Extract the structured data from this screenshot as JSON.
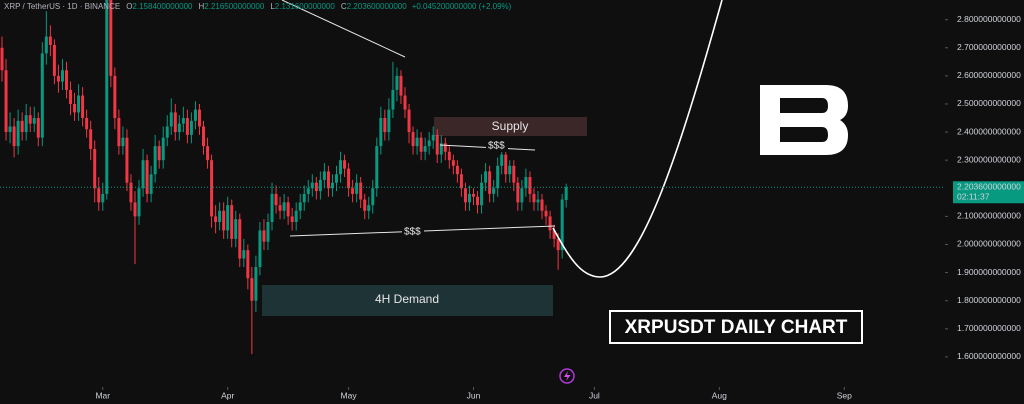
{
  "header": {
    "symbol": "XRP / TetherUS · 1D · BINANCE",
    "fields": [
      {
        "key": "O",
        "value": "2.158400000000"
      },
      {
        "key": "H",
        "value": "2.216500000000"
      },
      {
        "key": "L",
        "value": "2.131600000000"
      },
      {
        "key": "C",
        "value": "2.203600000000"
      }
    ],
    "change": "+0.045200000000 (+2.09%)"
  },
  "chart_data": {
    "type": "candlestick",
    "open": [
      2.7,
      2.62,
      2.4,
      2.42,
      2.35,
      2.44,
      2.4,
      2.46,
      2.43,
      2.45,
      2.38,
      2.68,
      2.74,
      2.71,
      2.6,
      2.58,
      2.62,
      2.55,
      2.5,
      2.47,
      2.53,
      2.45,
      2.41,
      2.34,
      2.2,
      2.15,
      2.18,
      2.88,
      2.6,
      2.45,
      2.35,
      2.38,
      2.22,
      2.15,
      2.1,
      2.2,
      2.3,
      2.18,
      2.25,
      2.35,
      2.3,
      2.38,
      2.42,
      2.47,
      2.4,
      2.43,
      2.45,
      2.39,
      2.44,
      2.48,
      2.42,
      2.35,
      2.3,
      2.1,
      2.08,
      2.12,
      2.05,
      2.14,
      2.02,
      2.09,
      1.95,
      1.98,
      1.88,
      1.8,
      1.92,
      2.05,
      2.01,
      2.08,
      2.18,
      2.14,
      2.12,
      2.15,
      2.1,
      2.08,
      2.12,
      2.15,
      2.18,
      2.2,
      2.22,
      2.19,
      2.23,
      2.26,
      2.2,
      2.22,
      2.25,
      2.3,
      2.27,
      2.2,
      2.18,
      2.22,
      2.16,
      2.12,
      2.14,
      2.2,
      2.35,
      2.45,
      2.4,
      2.48,
      2.55,
      2.6,
      2.53,
      2.48,
      2.4,
      2.35,
      2.38,
      2.33,
      2.35,
      2.37,
      2.39,
      2.32,
      2.36,
      2.33,
      2.3,
      2.28,
      2.25,
      2.2,
      2.15,
      2.18,
      2.17,
      2.14,
      2.22,
      2.26,
      2.18,
      2.2,
      2.28,
      2.32,
      2.25,
      2.28,
      2.22,
      2.15,
      2.2,
      2.24,
      2.18,
      2.15,
      2.16,
      2.12,
      2.1,
      2.05,
      2.02,
      1.98,
      2.1584
    ],
    "high": [
      2.74,
      2.66,
      2.47,
      2.45,
      2.48,
      2.47,
      2.5,
      2.49,
      2.49,
      2.47,
      2.72,
      2.83,
      2.78,
      2.73,
      2.64,
      2.66,
      2.65,
      2.58,
      2.54,
      2.57,
      2.56,
      2.48,
      2.44,
      2.37,
      2.24,
      2.22,
      2.99,
      2.92,
      2.63,
      2.48,
      2.42,
      2.41,
      2.25,
      2.19,
      2.23,
      2.34,
      2.32,
      2.28,
      2.39,
      2.37,
      2.42,
      2.46,
      2.52,
      2.5,
      2.46,
      2.49,
      2.48,
      2.47,
      2.51,
      2.5,
      2.44,
      2.38,
      2.32,
      2.14,
      2.15,
      2.15,
      2.17,
      2.16,
      2.12,
      2.11,
      2.02,
      2.0,
      1.92,
      1.96,
      2.08,
      2.09,
      2.11,
      2.22,
      2.21,
      2.17,
      2.18,
      2.17,
      2.13,
      2.15,
      2.18,
      2.21,
      2.23,
      2.25,
      2.24,
      2.26,
      2.29,
      2.28,
      2.25,
      2.28,
      2.33,
      2.32,
      2.29,
      2.23,
      2.25,
      2.24,
      2.18,
      2.17,
      2.23,
      2.38,
      2.49,
      2.48,
      2.52,
      2.65,
      2.63,
      2.62,
      2.56,
      2.5,
      2.42,
      2.41,
      2.4,
      2.38,
      2.4,
      2.42,
      2.41,
      2.39,
      2.38,
      2.35,
      2.32,
      2.3,
      2.27,
      2.22,
      2.21,
      2.2,
      2.19,
      2.25,
      2.29,
      2.28,
      2.23,
      2.31,
      2.34,
      2.34,
      2.3,
      2.3,
      2.24,
      2.23,
      2.27,
      2.26,
      2.2,
      2.19,
      2.18,
      2.14,
      2.12,
      2.07,
      2.04,
      2.18,
      2.2165
    ],
    "low": [
      2.58,
      2.37,
      2.36,
      2.31,
      2.32,
      2.37,
      2.37,
      2.4,
      2.4,
      2.35,
      2.35,
      2.64,
      2.67,
      2.57,
      2.54,
      2.55,
      2.52,
      2.46,
      2.44,
      2.44,
      2.42,
      2.38,
      2.3,
      2.15,
      2.12,
      2.12,
      2.16,
      2.56,
      2.41,
      2.32,
      2.32,
      2.19,
      2.12,
      1.93,
      2.07,
      2.17,
      2.15,
      2.15,
      2.22,
      2.27,
      2.27,
      2.35,
      2.39,
      2.37,
      2.37,
      2.4,
      2.36,
      2.36,
      2.41,
      2.39,
      2.32,
      2.27,
      2.06,
      2.04,
      2.05,
      2.02,
      2.02,
      1.99,
      1.99,
      1.92,
      1.92,
      1.84,
      1.61,
      1.76,
      1.89,
      1.98,
      1.98,
      2.05,
      2.11,
      2.09,
      2.09,
      2.07,
      2.05,
      2.05,
      2.09,
      2.12,
      2.15,
      2.17,
      2.16,
      2.16,
      2.2,
      2.17,
      2.17,
      2.19,
      2.22,
      2.24,
      2.17,
      2.15,
      2.15,
      2.13,
      2.09,
      2.09,
      2.11,
      2.17,
      2.32,
      2.37,
      2.37,
      2.45,
      2.51,
      2.5,
      2.45,
      2.36,
      2.32,
      2.32,
      2.3,
      2.3,
      2.32,
      2.34,
      2.29,
      2.29,
      2.3,
      2.27,
      2.25,
      2.22,
      2.17,
      2.12,
      2.12,
      2.14,
      2.11,
      2.11,
      2.19,
      2.15,
      2.15,
      2.17,
      2.25,
      2.22,
      2.22,
      2.19,
      2.12,
      2.12,
      2.17,
      2.15,
      2.12,
      2.12,
      2.09,
      2.07,
      2.02,
      1.99,
      1.91,
      1.95,
      2.1316
    ],
    "close": [
      2.62,
      2.4,
      2.42,
      2.35,
      2.44,
      2.4,
      2.46,
      2.43,
      2.45,
      2.38,
      2.68,
      2.74,
      2.71,
      2.6,
      2.58,
      2.62,
      2.55,
      2.5,
      2.47,
      2.53,
      2.45,
      2.41,
      2.34,
      2.2,
      2.15,
      2.18,
      2.88,
      2.6,
      2.45,
      2.35,
      2.38,
      2.22,
      2.15,
      2.1,
      2.2,
      2.3,
      2.18,
      2.25,
      2.35,
      2.3,
      2.38,
      2.42,
      2.47,
      2.4,
      2.43,
      2.45,
      2.39,
      2.44,
      2.48,
      2.42,
      2.35,
      2.3,
      2.1,
      2.08,
      2.12,
      2.05,
      2.14,
      2.02,
      2.09,
      1.95,
      1.98,
      1.88,
      1.8,
      1.92,
      2.05,
      2.01,
      2.08,
      2.18,
      2.14,
      2.12,
      2.15,
      2.1,
      2.08,
      2.12,
      2.15,
      2.18,
      2.2,
      2.22,
      2.19,
      2.23,
      2.26,
      2.2,
      2.22,
      2.25,
      2.3,
      2.27,
      2.2,
      2.18,
      2.22,
      2.16,
      2.12,
      2.14,
      2.2,
      2.35,
      2.45,
      2.4,
      2.48,
      2.55,
      2.6,
      2.53,
      2.48,
      2.4,
      2.35,
      2.38,
      2.33,
      2.35,
      2.37,
      2.39,
      2.32,
      2.36,
      2.33,
      2.3,
      2.28,
      2.25,
      2.2,
      2.15,
      2.18,
      2.17,
      2.14,
      2.22,
      2.26,
      2.18,
      2.2,
      2.28,
      2.32,
      2.25,
      2.28,
      2.22,
      2.15,
      2.2,
      2.24,
      2.18,
      2.15,
      2.16,
      2.12,
      2.1,
      2.05,
      2.02,
      1.98,
      2.16,
      2.2036
    ],
    "colors": {
      "up": "#089981",
      "down": "#f23645"
    },
    "xlim": [
      -0.5,
      234
    ],
    "xticks": [
      {
        "value": 25,
        "label": "Mar"
      },
      {
        "value": 56,
        "label": "Apr"
      },
      {
        "value": 86,
        "label": "May"
      },
      {
        "value": 117,
        "label": "Jun"
      },
      {
        "value": 147,
        "label": "Jul"
      },
      {
        "value": 178,
        "label": "Aug"
      },
      {
        "value": 209,
        "label": "Sep"
      }
    ],
    "ylim": [
      1.5,
      2.87
    ],
    "yticks": [
      {
        "value": 1.6,
        "label": "1.600000000000"
      },
      {
        "value": 1.7,
        "label": "1.700000000000"
      },
      {
        "value": 1.8,
        "label": "1.800000000000"
      },
      {
        "value": 1.9,
        "label": "1.900000000000"
      },
      {
        "value": 2.0,
        "label": "2.000000000000"
      },
      {
        "value": 2.1,
        "label": "2.100000000000"
      },
      {
        "value": 2.3,
        "label": "2.300000000000"
      },
      {
        "value": 2.4,
        "label": "2.400000000000"
      },
      {
        "value": 2.5,
        "label": "2.500000000000"
      },
      {
        "value": 2.6,
        "label": "2.600000000000"
      },
      {
        "value": 2.7,
        "label": "2.700000000000"
      },
      {
        "value": 2.8,
        "label": "2.800000000000"
      }
    ],
    "last_price": {
      "value": 2.2036,
      "label": "2.203600000000",
      "countdown": "02:11:37"
    },
    "annotations": {
      "supply": "Supply",
      "demand": "4H Demand",
      "liquidity_high": "$$$",
      "liquidity_low": "$$$",
      "title": "XRPUSDT DAILY CHART"
    }
  }
}
